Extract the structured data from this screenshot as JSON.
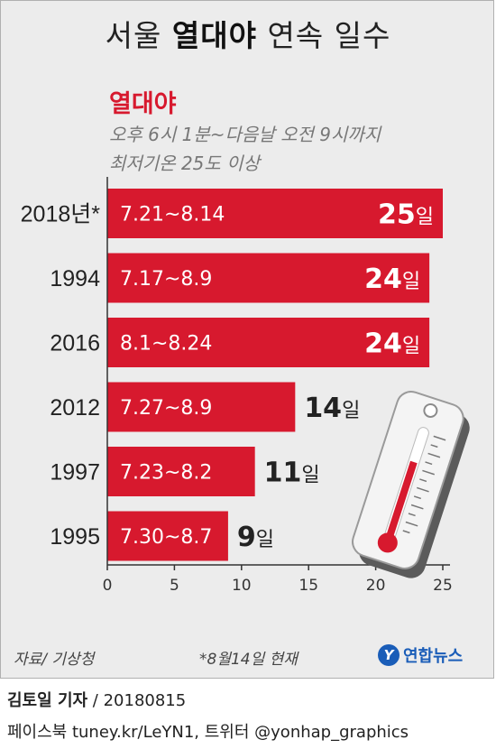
{
  "title_prefix": "서울",
  "title_bold": "열대야",
  "title_suffix": "연속 일수",
  "subhead": "열대야",
  "desc_line1": "오후 6시 1분~다음날 오전 9시까지",
  "desc_line2": "최저기온 25도 이상",
  "source": "자료/ 기상청",
  "note": "*8월14일 현재",
  "logo_text": "연합뉴스",
  "reporter": "김토일 기자",
  "date": " / 20180815",
  "social": "페이스북 tuney.kr/LeYN1, 트위터 @yonhap_graphics",
  "colors": {
    "bar": "#d7192e",
    "title_red": "#d7192e",
    "logo": "#1a5db8"
  },
  "chart_data": {
    "type": "bar",
    "orientation": "horizontal",
    "categories": [
      "2018년*",
      "1994",
      "2016",
      "2012",
      "1997",
      "1995"
    ],
    "values": [
      25,
      24,
      24,
      14,
      11,
      9
    ],
    "value_labels": [
      "25일",
      "24일",
      "24일",
      "14일",
      "11일",
      "9일"
    ],
    "period_labels": [
      "7.21~8.14",
      "7.17~8.9",
      "8.1~8.24",
      "7.27~8.9",
      "7.23~8.2",
      "7.30~8.7"
    ],
    "xticks": [
      0,
      5,
      10,
      15,
      20,
      25
    ],
    "xlim": [
      0,
      25
    ],
    "grid": false
  }
}
